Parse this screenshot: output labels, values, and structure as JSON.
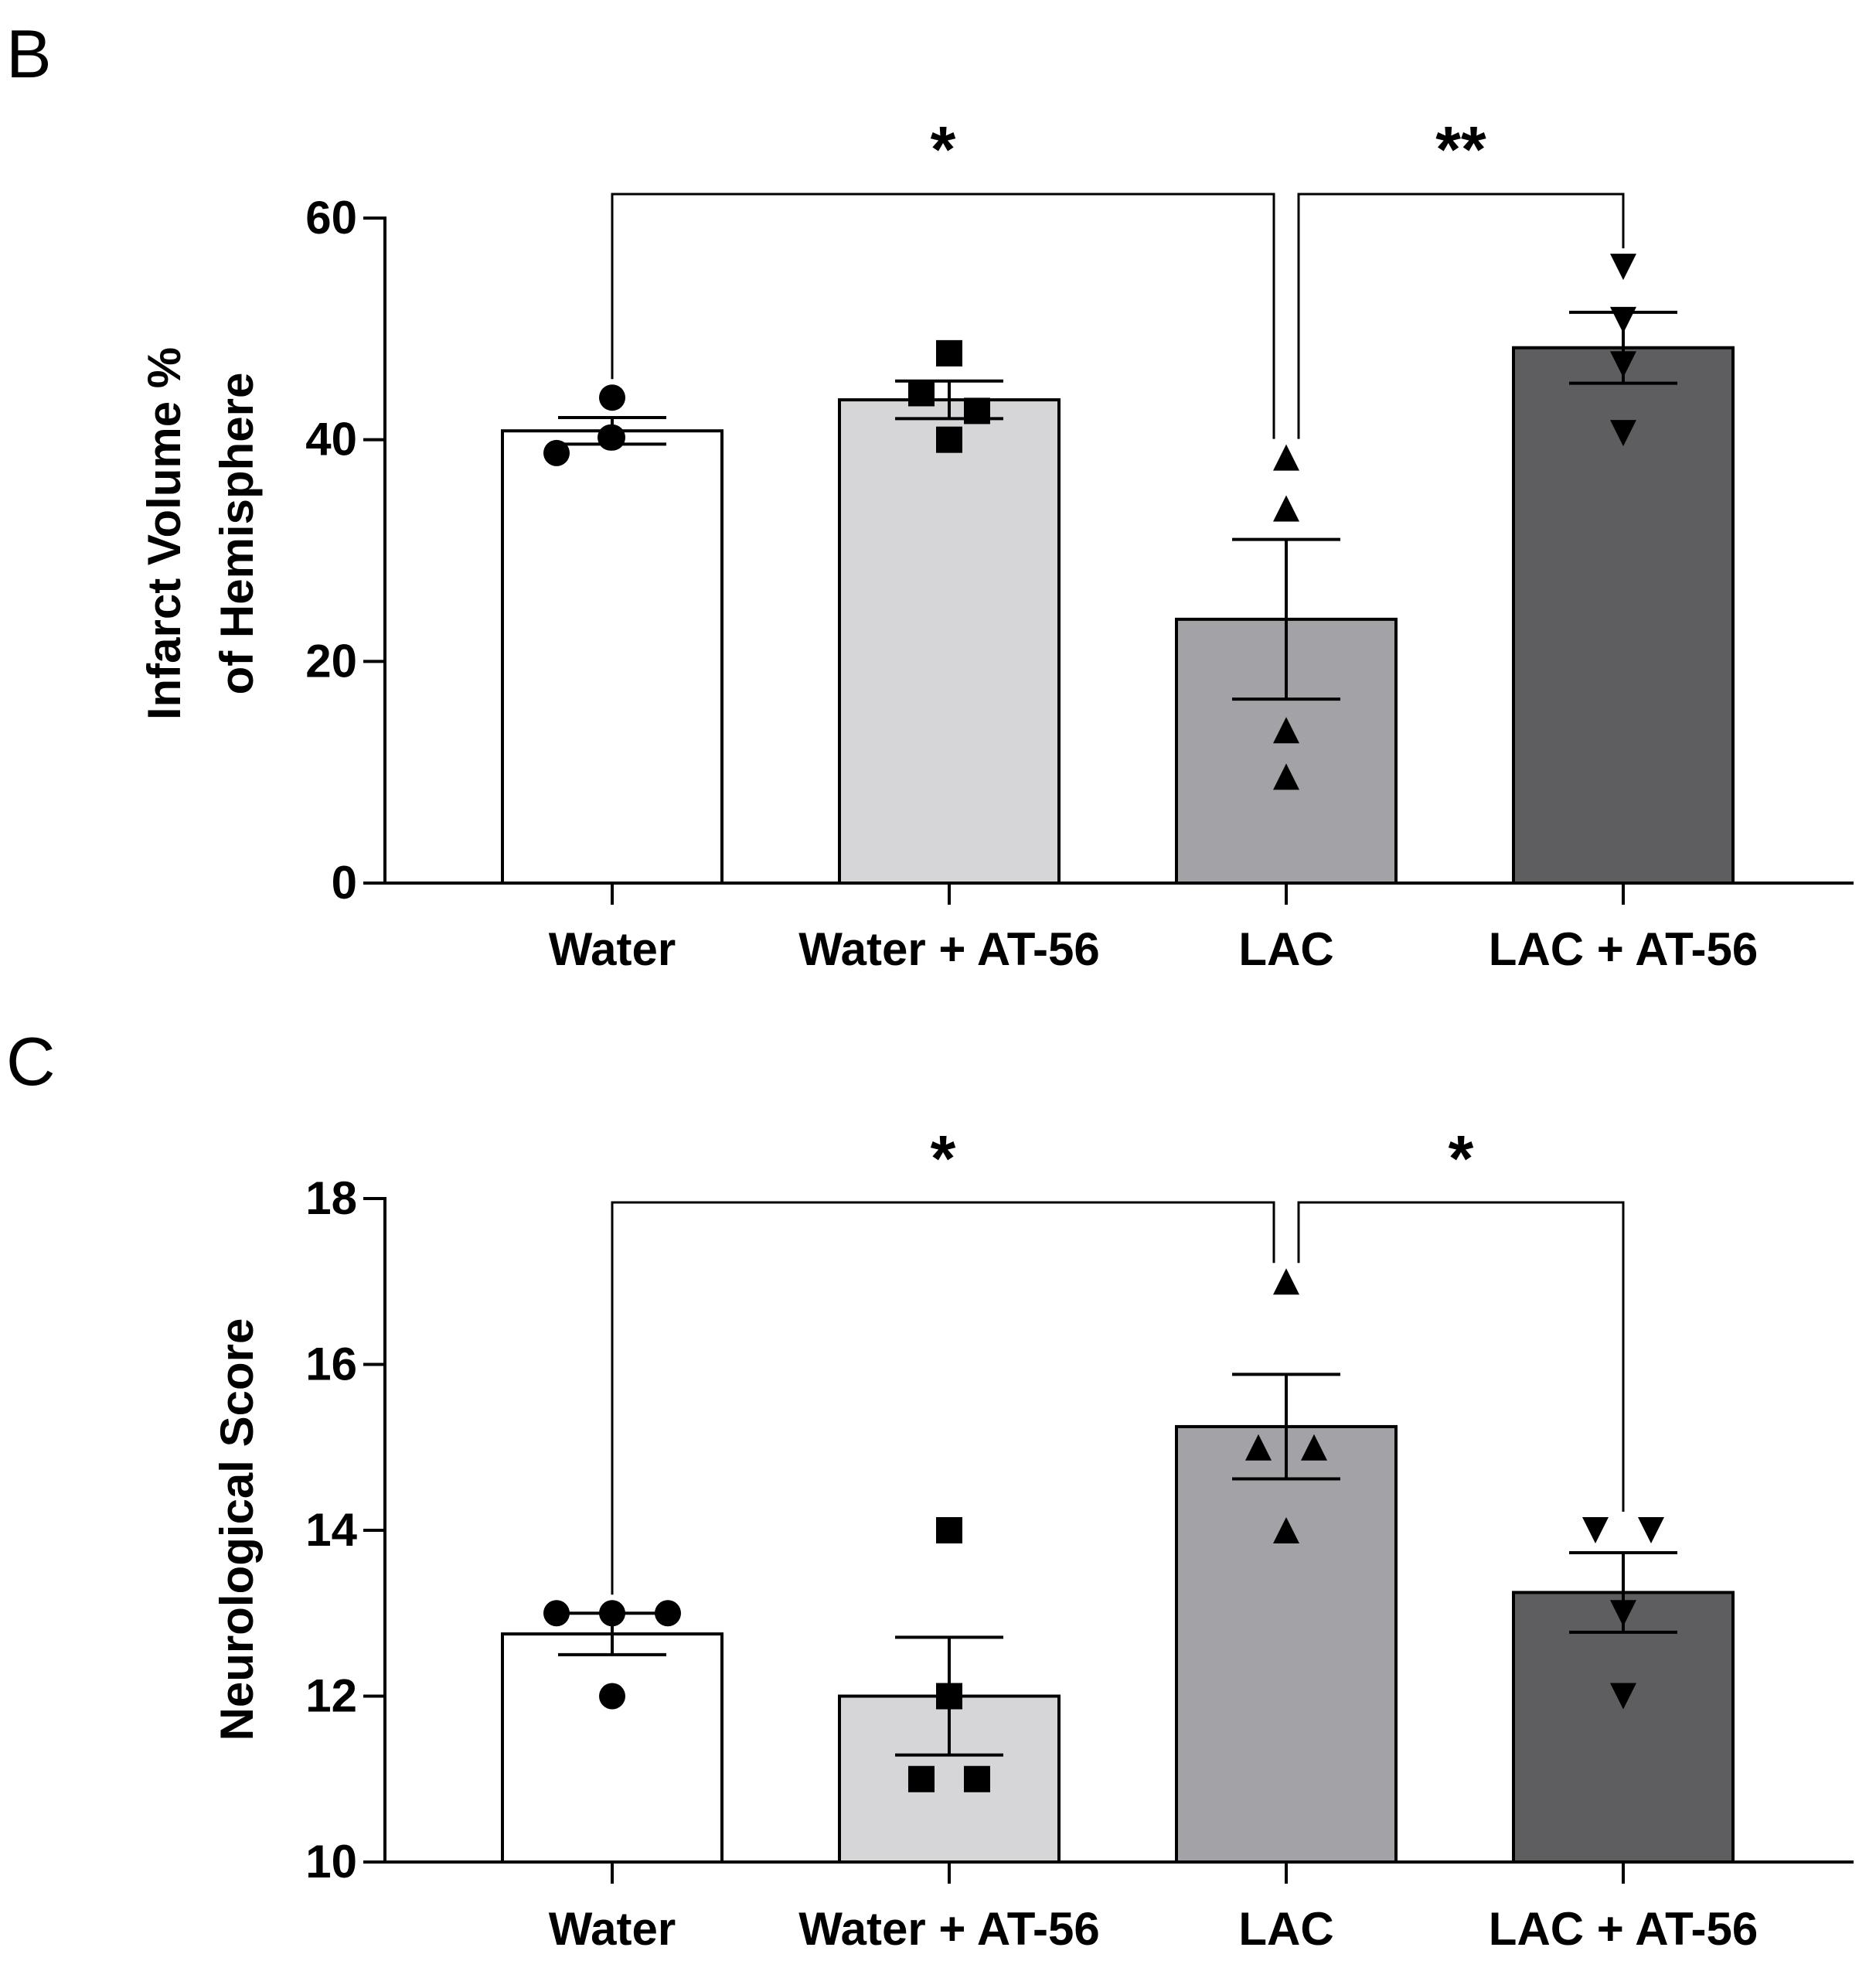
{
  "chart_data": [
    {
      "panel": "B",
      "type": "bar",
      "title": "",
      "xlabel": "",
      "ylabel": [
        "Infarct Volume %",
        "of Hemisphere"
      ],
      "ylim": [
        0,
        60
      ],
      "yticks": [
        0,
        20,
        40,
        60
      ],
      "categories": [
        "Water",
        "Water + AT-56",
        "LAC",
        "LAC + AT-56"
      ],
      "values": [
        40.8,
        43.6,
        23.8,
        48.3
      ],
      "sem": [
        1.2,
        1.7,
        7.2,
        3.2
      ],
      "bar_colors": [
        "#ffffff",
        "#d6d6d8",
        "#a3a3a7",
        "#5e5e60"
      ],
      "markers": [
        "circle",
        "square",
        "triangle-up",
        "triangle-down"
      ],
      "points": [
        [
          38.8,
          40.2,
          43.8,
          40.2
        ],
        [
          47.8,
          44.2,
          42.6,
          40.0
        ],
        [
          38.4,
          33.8,
          13.8,
          9.6
        ],
        [
          55.6,
          50.8,
          46.8,
          40.6
        ]
      ],
      "significance": [
        {
          "from": 0,
          "to": 2,
          "label": "*"
        },
        {
          "from": 2,
          "to": 3,
          "label": "**"
        }
      ]
    },
    {
      "panel": "C",
      "type": "bar",
      "title": "",
      "xlabel": "",
      "ylabel": [
        "Neurological Score"
      ],
      "ylim": [
        10,
        18
      ],
      "yticks": [
        10,
        12,
        14,
        16,
        18
      ],
      "categories": [
        "Water",
        "Water + AT-56",
        "LAC",
        "LAC + AT-56"
      ],
      "values": [
        12.75,
        12.0,
        15.25,
        13.25
      ],
      "sem": [
        0.25,
        0.71,
        0.63,
        0.48
      ],
      "bar_colors": [
        "#ffffff",
        "#d6d6d8",
        "#a3a3a7",
        "#5e5e60"
      ],
      "markers": [
        "circle",
        "square",
        "triangle-up",
        "triangle-down"
      ],
      "points": [
        [
          13.0,
          13.0,
          13.0,
          12.0
        ],
        [
          14.0,
          12.0,
          11.0,
          11.0
        ],
        [
          17.0,
          15.0,
          15.0,
          14.0
        ],
        [
          14.0,
          14.0,
          13.0,
          12.0
        ]
      ],
      "significance": [
        {
          "from": 0,
          "to": 2,
          "label": "*"
        },
        {
          "from": 2,
          "to": 3,
          "label": "*"
        }
      ]
    }
  ]
}
